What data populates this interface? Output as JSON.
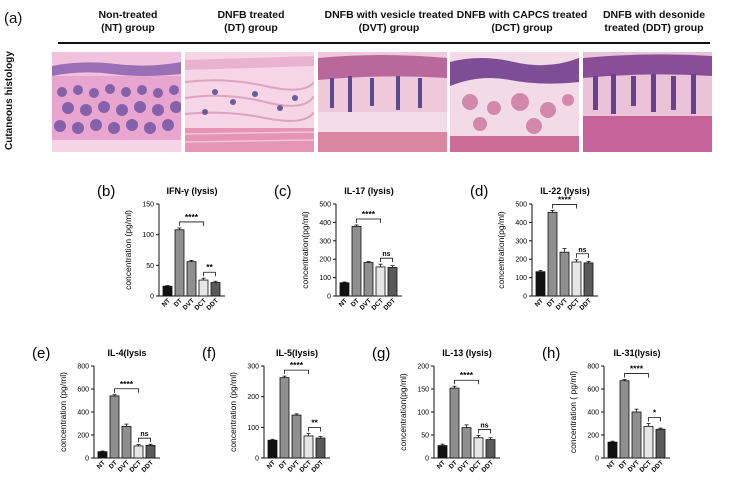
{
  "panel_a": {
    "label": "(a)",
    "row_label": "Cutaneous histology",
    "groups": [
      {
        "line1": "Non-treated",
        "line2": "(NT) group"
      },
      {
        "line1": "DNFB treated",
        "line2": "(DT) group"
      },
      {
        "line1": "DNFB with vesicle treated",
        "line2": "(DVT) group"
      },
      {
        "line1": "DNFB with CAPCS treated",
        "line2": "(DCT) group"
      },
      {
        "line1": "DNFB with desonide",
        "line2": "treated (DDT) group"
      }
    ],
    "image_colors": [
      "#e7a5cf",
      "#f2c6dd",
      "#d8879f",
      "#c96d97",
      "#c5639a"
    ]
  },
  "chart_data": [
    {
      "panel": "(b)",
      "type": "bar",
      "title": "IFN-γ (lysis)",
      "ylabel": "concentration (pg/ml)",
      "categories": [
        "NT",
        "DT",
        "DVT",
        "DCT",
        "DDT"
      ],
      "values": [
        16,
        108,
        56,
        26,
        22
      ],
      "errors": [
        1,
        3,
        2,
        3,
        2
      ],
      "ylim": [
        0,
        150
      ],
      "yticks": [
        0,
        50,
        100,
        150
      ],
      "sig": [
        {
          "from": 1,
          "to": 3,
          "label": "****"
        },
        {
          "from": 3,
          "to": 4,
          "label": "**"
        }
      ]
    },
    {
      "panel": "(c)",
      "type": "bar",
      "title": "IL-17 (lysis)",
      "ylabel": "concentration(pg/ml)",
      "categories": [
        "NT",
        "DT",
        "DVT",
        "DCT",
        "DDT"
      ],
      "values": [
        72,
        378,
        182,
        158,
        155
      ],
      "errors": [
        4,
        8,
        5,
        15,
        10
      ],
      "ylim": [
        0,
        500
      ],
      "yticks": [
        0,
        100,
        200,
        300,
        400,
        500
      ],
      "sig": [
        {
          "from": 1,
          "to": 3,
          "label": "****"
        },
        {
          "from": 3,
          "to": 4,
          "label": "ns"
        }
      ]
    },
    {
      "panel": "(d)",
      "type": "bar",
      "title": "IL-22 (lysis)",
      "ylabel": "concentration(pg/ml)",
      "categories": [
        "NT",
        "DT",
        "DVT",
        "DCT",
        "DDT"
      ],
      "values": [
        132,
        455,
        238,
        185,
        180
      ],
      "errors": [
        6,
        10,
        20,
        12,
        8
      ],
      "ylim": [
        0,
        500
      ],
      "yticks": [
        0,
        100,
        200,
        300,
        400,
        500
      ],
      "sig": [
        {
          "from": 1,
          "to": 3,
          "label": "****"
        },
        {
          "from": 3,
          "to": 4,
          "label": "ns"
        }
      ]
    },
    {
      "panel": "(e)",
      "type": "bar",
      "title": "IL-4(lysis",
      "ylabel": "concentration (pg/ml)",
      "categories": [
        "NT",
        "DT",
        "DVT",
        "DCT",
        "DDT"
      ],
      "values": [
        55,
        540,
        275,
        105,
        110
      ],
      "errors": [
        5,
        10,
        20,
        12,
        10
      ],
      "ylim": [
        0,
        800
      ],
      "yticks": [
        0,
        200,
        400,
        600,
        800
      ],
      "sig": [
        {
          "from": 1,
          "to": 3,
          "label": "****"
        },
        {
          "from": 3,
          "to": 4,
          "label": "ns"
        }
      ]
    },
    {
      "panel": "(f)",
      "type": "bar",
      "title": "IL-5(lysis)",
      "ylabel": "concentration (pg/ml)",
      "categories": [
        "NT",
        "DT",
        "DVT",
        "DCT",
        "DDT"
      ],
      "values": [
        58,
        262,
        140,
        72,
        65
      ],
      "errors": [
        3,
        5,
        4,
        8,
        5
      ],
      "ylim": [
        0,
        300
      ],
      "yticks": [
        0,
        100,
        200,
        300
      ],
      "sig": [
        {
          "from": 1,
          "to": 3,
          "label": "****"
        },
        {
          "from": 3,
          "to": 4,
          "label": "**"
        }
      ]
    },
    {
      "panel": "(g)",
      "type": "bar",
      "title": "IL-13 (lysis)",
      "ylabel": "concentration(pg/ml)",
      "categories": [
        "NT",
        "DT",
        "DVT",
        "DCT",
        "DDT"
      ],
      "values": [
        27,
        152,
        66,
        44,
        40
      ],
      "errors": [
        3,
        4,
        6,
        5,
        4
      ],
      "ylim": [
        0,
        200
      ],
      "yticks": [
        0,
        50,
        100,
        150,
        200
      ],
      "sig": [
        {
          "from": 1,
          "to": 3,
          "label": "****"
        },
        {
          "from": 3,
          "to": 4,
          "label": "ns"
        }
      ]
    },
    {
      "panel": "(h)",
      "type": "bar",
      "title": "IL-31(lysis)",
      "ylabel": "concentration ( pg/ml)",
      "categories": [
        "NT",
        "DT",
        "DVT",
        "DCT",
        "DDT"
      ],
      "values": [
        138,
        672,
        400,
        275,
        250
      ],
      "errors": [
        8,
        10,
        25,
        25,
        10
      ],
      "ylim": [
        0,
        800
      ],
      "yticks": [
        0,
        200,
        400,
        600,
        800
      ],
      "sig": [
        {
          "from": 1,
          "to": 3,
          "label": "****"
        },
        {
          "from": 3,
          "to": 4,
          "label": "*"
        }
      ]
    }
  ],
  "bar_colors": [
    "#111111",
    "#8f8f8f",
    "#8f8f8f",
    "#e6e6e6",
    "#5a5a5a"
  ]
}
